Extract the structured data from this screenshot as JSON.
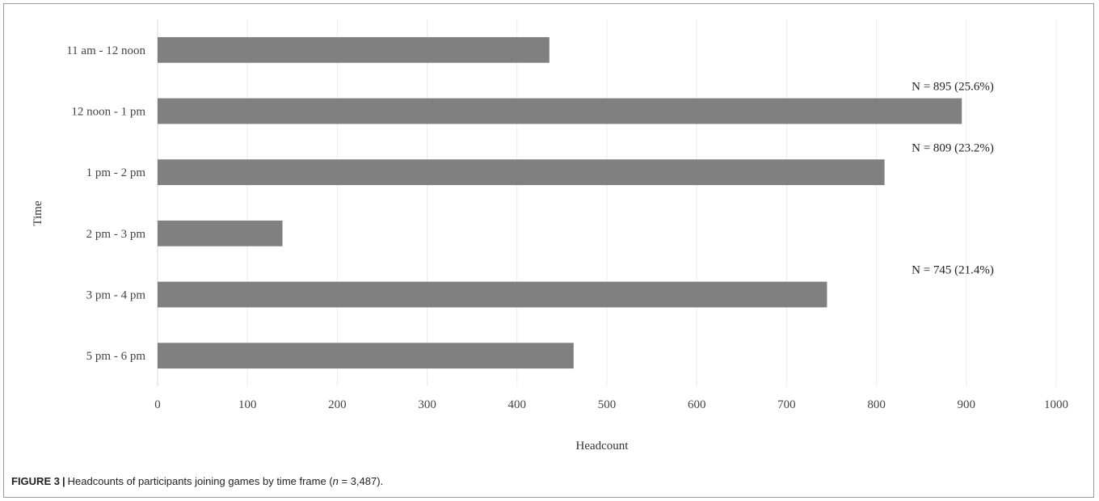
{
  "chart_data": {
    "type": "bar",
    "orientation": "horizontal",
    "categories": [
      "11 am - 12 noon",
      "12 noon - 1 pm",
      "1 pm - 2 pm",
      "2 pm - 3 pm",
      "3 pm - 4 pm",
      "5 pm - 6 pm"
    ],
    "values": [
      436,
      895,
      809,
      139,
      745,
      463
    ],
    "xlabel": "Headcount",
    "ylabel": "Time",
    "xlim": [
      0,
      1000
    ],
    "xticks": [
      0,
      100,
      200,
      300,
      400,
      500,
      600,
      700,
      800,
      900,
      1000
    ],
    "grid": true,
    "legend": "none",
    "bar_color": "#808080",
    "annotations": [
      {
        "category": "12 noon - 1 pm",
        "text": "N = 895 (25.6%)"
      },
      {
        "category": "1 pm - 2 pm",
        "text": "N = 809 (23.2%)"
      },
      {
        "category": "3 pm - 4 pm",
        "text": "N = 745 (21.4%)"
      }
    ]
  },
  "caption": {
    "figure_label": "FIGURE 3",
    "separator": "|",
    "text_before": "Headcounts of participants joining games by time frame (",
    "n_symbol": "n",
    "text_after": " = 3,487)."
  }
}
